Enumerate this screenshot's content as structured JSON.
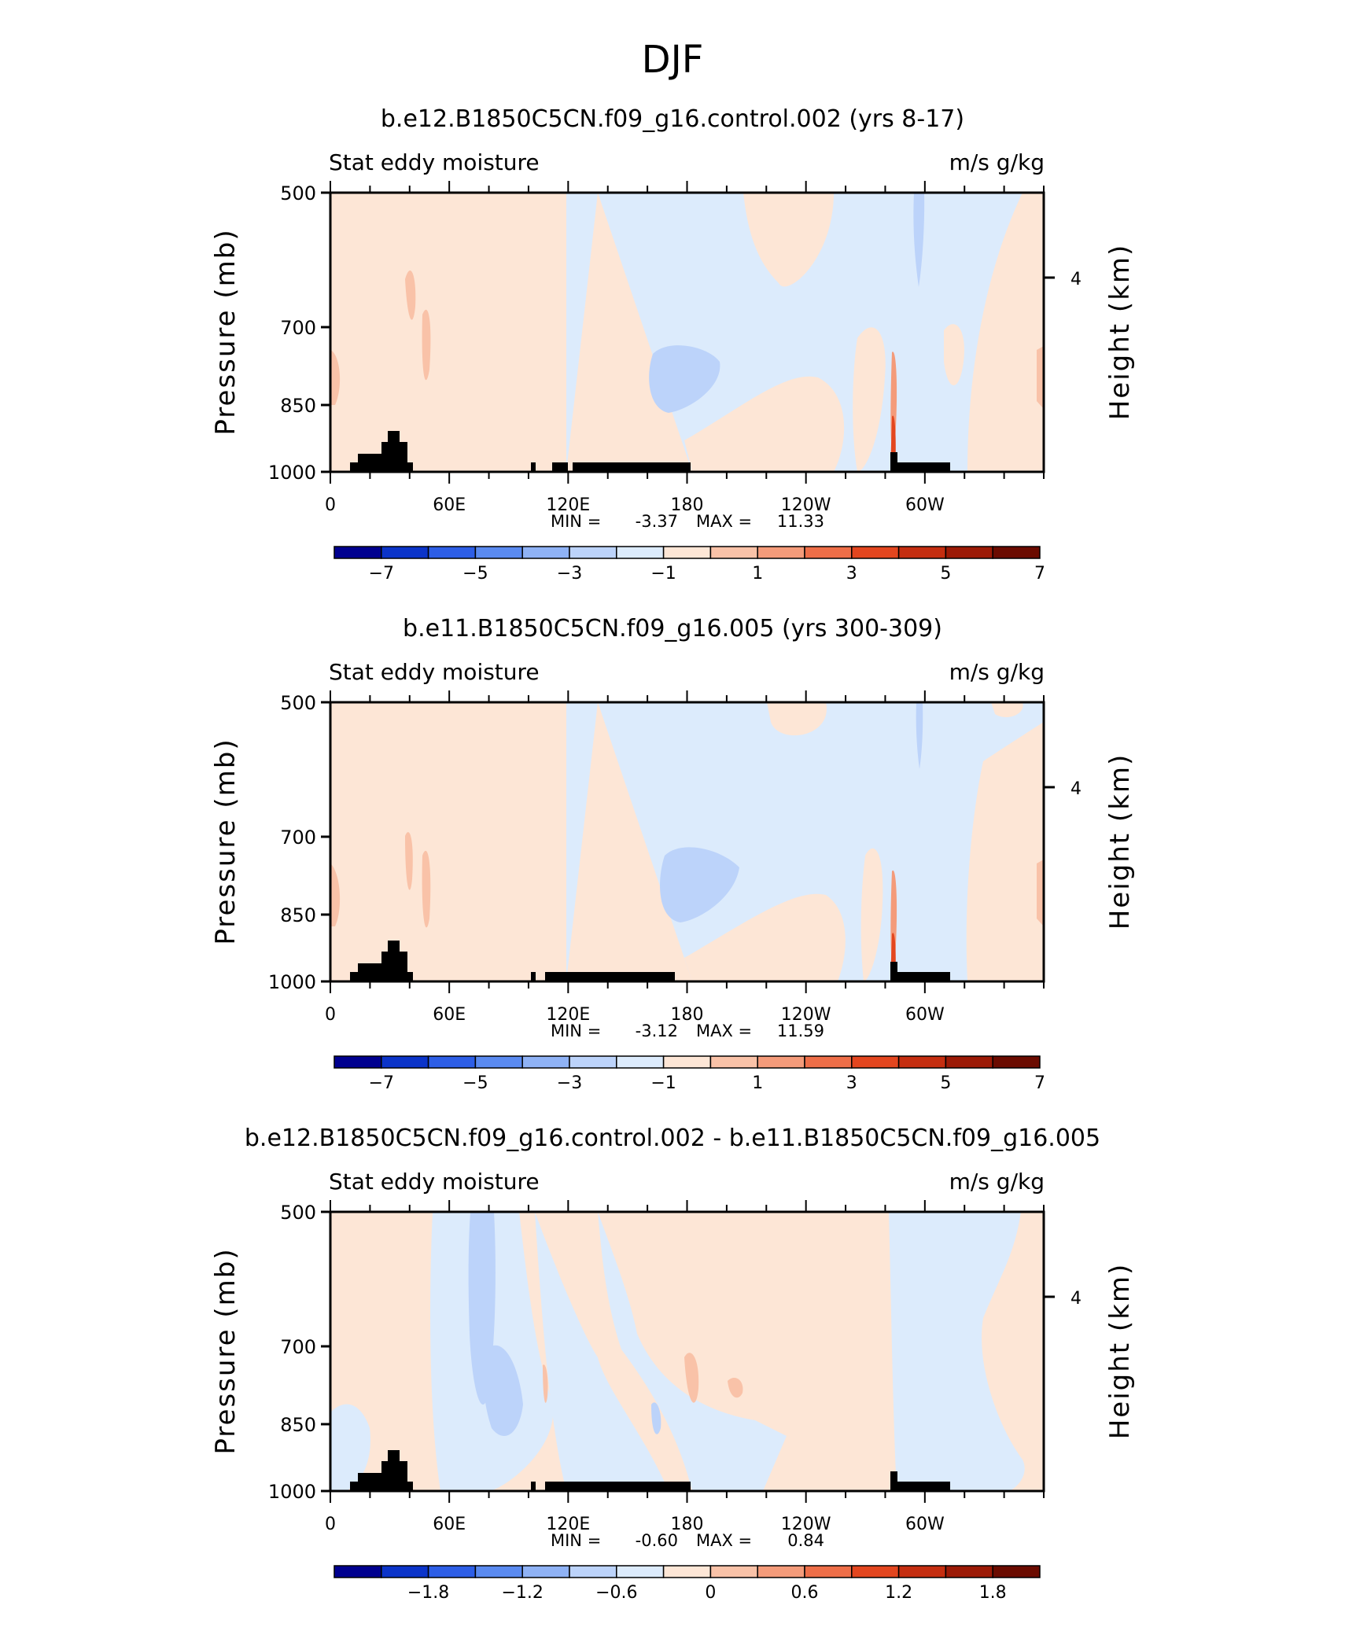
{
  "figure_title": "DJF",
  "chart_data": [
    {
      "type": "heatmap",
      "title": "b.e12.B1850C5CN.f09_g16.control.002 (yrs 8-17)",
      "left_label": "Stat eddy moisture",
      "right_label": "m/s g/kg",
      "ylabel": "Pressure (mb)",
      "ylabel_right": "Height (km)",
      "yticks": [
        "500",
        "700",
        "850",
        "1000"
      ],
      "yticks_right": [
        "4"
      ],
      "xticks": [
        "0",
        "60E",
        "120E",
        "180",
        "120W",
        "60W"
      ],
      "min_label": "MIN =",
      "min": "-3.37",
      "max_label": "MAX =",
      "max": "11.33",
      "colorbar_labels": [
        "-7",
        "-5",
        "-3",
        "-1",
        "1",
        "3",
        "5",
        "7"
      ],
      "colorbar_colors": [
        "#00008f",
        "#0b34c9",
        "#2d5ee6",
        "#5a8af0",
        "#8fb2f5",
        "#bcd3fa",
        "#dcebfc",
        "#fde6d6",
        "#f9c2a8",
        "#f49b7a",
        "#ee6e48",
        "#e3461f",
        "#c52e10",
        "#9c1a06",
        "#6b0b00"
      ]
    },
    {
      "type": "heatmap",
      "title": "b.e11.B1850C5CN.f09_g16.005 (yrs 300-309)",
      "left_label": "Stat eddy moisture",
      "right_label": "m/s g/kg",
      "ylabel": "Pressure (mb)",
      "ylabel_right": "Height (km)",
      "yticks": [
        "500",
        "700",
        "850",
        "1000"
      ],
      "yticks_right": [
        "4"
      ],
      "xticks": [
        "0",
        "60E",
        "120E",
        "180",
        "120W",
        "60W"
      ],
      "min_label": "MIN =",
      "min": "-3.12",
      "max_label": "MAX =",
      "max": "11.59",
      "colorbar_labels": [
        "-7",
        "-5",
        "-3",
        "-1",
        "1",
        "3",
        "5",
        "7"
      ],
      "colorbar_colors": [
        "#00008f",
        "#0b34c9",
        "#2d5ee6",
        "#5a8af0",
        "#8fb2f5",
        "#bcd3fa",
        "#dcebfc",
        "#fde6d6",
        "#f9c2a8",
        "#f49b7a",
        "#ee6e48",
        "#e3461f",
        "#c52e10",
        "#9c1a06",
        "#6b0b00"
      ]
    },
    {
      "type": "heatmap",
      "title": "b.e12.B1850C5CN.f09_g16.control.002 - b.e11.B1850C5CN.f09_g16.005",
      "left_label": "Stat eddy moisture",
      "right_label": "m/s g/kg",
      "ylabel": "Pressure (mb)",
      "ylabel_right": "Height (km)",
      "yticks": [
        "500",
        "700",
        "850",
        "1000"
      ],
      "yticks_right": [
        "4"
      ],
      "xticks": [
        "0",
        "60E",
        "120E",
        "180",
        "120W",
        "60W"
      ],
      "min_label": "MIN =",
      "min": "-0.60",
      "max_label": "MAX =",
      "max": "0.84",
      "colorbar_labels": [
        "-1.8",
        "-1.2",
        "-0.6",
        "0",
        "0.6",
        "1.2",
        "1.8"
      ],
      "colorbar_colors": [
        "#00008f",
        "#0b34c9",
        "#2d5ee6",
        "#5a8af0",
        "#8fb2f5",
        "#bcd3fa",
        "#dcebfc",
        "#fde6d6",
        "#f9c2a8",
        "#f49b7a",
        "#ee6e48",
        "#e3461f",
        "#c52e10",
        "#9c1a06",
        "#6b0b00"
      ]
    }
  ]
}
